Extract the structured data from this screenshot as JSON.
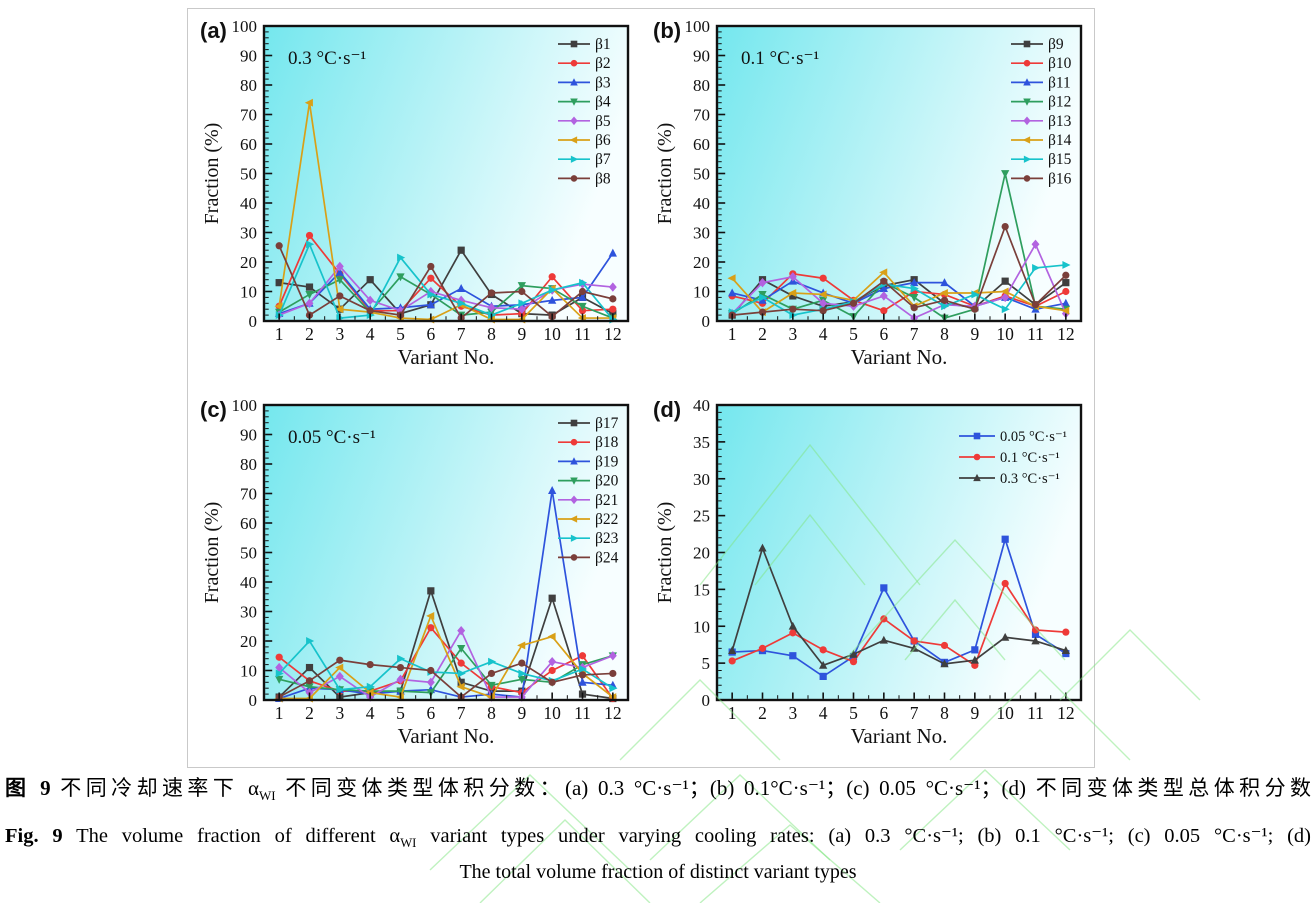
{
  "watermark_color": "#7fe57f",
  "plot_background_gradient": [
    "#74e7ee",
    "#aff1f5",
    "#f7feff"
  ],
  "axis_color": "#111111",
  "chart_data": [
    {
      "id": "a",
      "type": "line",
      "label": "(a)",
      "annotation": "0.3 °C·s⁻¹",
      "xlabel": "Variant No.",
      "ylabel": "Fraction (%)",
      "ylim": [
        0,
        100
      ],
      "ytick_step": 10,
      "legend_position": "top-right",
      "grid": false,
      "categories": [
        1,
        2,
        3,
        4,
        5,
        6,
        7,
        8,
        9,
        10,
        11,
        12
      ],
      "series": [
        {
          "name": "β1",
          "color": "#3f3f3f",
          "marker": "square",
          "values": [
            13,
            11.5,
            4,
            14,
            2.5,
            5.5,
            24,
            9,
            2.5,
            2,
            8,
            2.5
          ]
        },
        {
          "name": "β2",
          "color": "#ee3a38",
          "marker": "circle",
          "values": [
            5,
            29,
            16,
            3.5,
            3.5,
            14.5,
            5,
            2,
            2.5,
            15,
            3.5,
            4
          ]
        },
        {
          "name": "β3",
          "color": "#2e53dc",
          "marker": "triangle-up",
          "values": [
            2.5,
            6,
            16.5,
            4,
            4.5,
            5.5,
            11,
            5,
            5.5,
            7,
            8,
            23
          ]
        },
        {
          "name": "β4",
          "color": "#2e9e5e",
          "marker": "triangle-down",
          "values": [
            3,
            9,
            14,
            3,
            15,
            9,
            2,
            3,
            12,
            11,
            5,
            1
          ]
        },
        {
          "name": "β5",
          "color": "#b263e0",
          "marker": "diamond",
          "values": [
            2,
            6,
            18.5,
            7,
            3.5,
            10,
            7,
            4.5,
            4,
            10.5,
            12.5,
            11.5
          ]
        },
        {
          "name": "β6",
          "color": "#d9a017",
          "marker": "triangle-left",
          "values": [
            5,
            74,
            4,
            3,
            1,
            0.5,
            5.5,
            0.5,
            0.5,
            11,
            1,
            1
          ]
        },
        {
          "name": "β7",
          "color": "#17c3cb",
          "marker": "triangle-right",
          "values": [
            2,
            26,
            1,
            2,
            21.5,
            9,
            6,
            2,
            6,
            10.5,
            13,
            0.5
          ]
        },
        {
          "name": "β8",
          "color": "#7a3f3a",
          "marker": "circle",
          "values": [
            25.5,
            2,
            8.5,
            3.5,
            2,
            18.5,
            1,
            9.5,
            10,
            1.5,
            10,
            7.5
          ]
        }
      ]
    },
    {
      "id": "b",
      "type": "line",
      "label": "(b)",
      "annotation": "0.1 °C·s⁻¹",
      "xlabel": "Variant No.",
      "ylabel": "Fraction (%)",
      "ylim": [
        0,
        100
      ],
      "ytick_step": 10,
      "legend_position": "top-right",
      "grid": false,
      "categories": [
        1,
        2,
        3,
        4,
        5,
        6,
        7,
        8,
        9,
        10,
        11,
        12
      ],
      "series": [
        {
          "name": "β9",
          "color": "#3f3f3f",
          "marker": "square",
          "values": [
            2,
            14,
            8.5,
            5,
            6.5,
            12,
            14,
            6,
            4.5,
            13.5,
            5.5,
            13
          ]
        },
        {
          "name": "β10",
          "color": "#ee3a38",
          "marker": "circle",
          "values": [
            8.5,
            6,
            16,
            14.5,
            7,
            3.5,
            10,
            9,
            5,
            8.5,
            5,
            10
          ]
        },
        {
          "name": "β11",
          "color": "#2e53dc",
          "marker": "triangle-up",
          "values": [
            9.5,
            7,
            13.5,
            9.5,
            6,
            11,
            13,
            13,
            5,
            8,
            4,
            6
          ]
        },
        {
          "name": "β12",
          "color": "#2e9e5e",
          "marker": "triangle-down",
          "values": [
            2.5,
            9,
            4,
            7,
            1.5,
            13,
            8,
            1,
            4,
            50,
            5,
            4
          ]
        },
        {
          "name": "β13",
          "color": "#b263e0",
          "marker": "diamond",
          "values": [
            2.5,
            13,
            15,
            6,
            5,
            8.5,
            1,
            5.5,
            5,
            8,
            26,
            2.5
          ]
        },
        {
          "name": "β14",
          "color": "#d9a017",
          "marker": "triangle-left",
          "values": [
            14.5,
            3,
            9.5,
            9,
            7,
            16.5,
            5,
            9.5,
            9.5,
            10,
            5,
            3.5
          ]
        },
        {
          "name": "β15",
          "color": "#17c3cb",
          "marker": "triangle-right",
          "values": [
            3,
            8,
            2,
            4,
            6.5,
            12.5,
            11,
            5,
            9,
            4,
            18,
            19
          ]
        },
        {
          "name": "β16",
          "color": "#7a3f3a",
          "marker": "circle",
          "values": [
            2,
            3,
            4,
            3.5,
            6,
            13.5,
            4.5,
            7,
            4,
            32,
            5.5,
            15.5
          ]
        }
      ]
    },
    {
      "id": "c",
      "type": "line",
      "label": "(c)",
      "annotation": "0.05 °C·s⁻¹",
      "xlabel": "Variant No.",
      "ylabel": "Fraction (%)",
      "ylim": [
        0,
        100
      ],
      "ytick_step": 10,
      "legend_position": "top-right",
      "grid": false,
      "categories": [
        1,
        2,
        3,
        4,
        5,
        6,
        7,
        8,
        9,
        10,
        11,
        12
      ],
      "series": [
        {
          "name": "β17",
          "color": "#3f3f3f",
          "marker": "square",
          "values": [
            1,
            11,
            1,
            2.5,
            3,
            37,
            6,
            3,
            3,
            34.5,
            2,
            0.5
          ]
        },
        {
          "name": "β18",
          "color": "#ee3a38",
          "marker": "circle",
          "values": [
            14.5,
            6.5,
            3,
            3,
            6.5,
            24.5,
            12.5,
            4.5,
            2.5,
            10,
            15,
            0.5
          ]
        },
        {
          "name": "β19",
          "color": "#2e53dc",
          "marker": "triangle-up",
          "values": [
            0.5,
            4,
            3.5,
            2,
            3,
            3.5,
            1,
            2,
            1,
            71,
            6,
            5
          ]
        },
        {
          "name": "β20",
          "color": "#2e9e5e",
          "marker": "triangle-down",
          "values": [
            7,
            4.5,
            3.5,
            3,
            3,
            2.5,
            17.5,
            5,
            7,
            6,
            12,
            15
          ]
        },
        {
          "name": "β21",
          "color": "#b263e0",
          "marker": "diamond",
          "values": [
            11,
            2.5,
            8,
            1,
            7,
            6,
            23.5,
            1,
            1,
            13,
            11,
            15
          ]
        },
        {
          "name": "β22",
          "color": "#d9a017",
          "marker": "triangle-left",
          "values": [
            0.5,
            0.5,
            11,
            2.5,
            1,
            28.5,
            4.5,
            1,
            18.5,
            21.5,
            9,
            1
          ]
        },
        {
          "name": "β23",
          "color": "#17c3cb",
          "marker": "triangle-right",
          "values": [
            9,
            20,
            3.5,
            4.5,
            14,
            9.5,
            9,
            13,
            9,
            6.5,
            10.5,
            4
          ]
        },
        {
          "name": "β24",
          "color": "#7a3f3a",
          "marker": "circle",
          "values": [
            1,
            6.5,
            13.5,
            12,
            11,
            10,
            1,
            9,
            12.5,
            6,
            8.5,
            9
          ]
        }
      ]
    },
    {
      "id": "d",
      "type": "line",
      "label": "(d)",
      "annotation": "",
      "xlabel": "Variant No.",
      "ylabel": "Fraction (%)",
      "ylim": [
        0,
        40
      ],
      "ytick_step": 5,
      "legend_position": "top-right",
      "grid": false,
      "categories": [
        1,
        2,
        3,
        4,
        5,
        6,
        7,
        8,
        9,
        10,
        11,
        12
      ],
      "series": [
        {
          "name": "0.05 °C·s⁻¹",
          "color": "#2e53dc",
          "marker": "square",
          "values": [
            6.5,
            6.7,
            6.0,
            3.2,
            5.9,
            15.2,
            8.0,
            5.1,
            6.8,
            21.8,
            8.9,
            6.3
          ]
        },
        {
          "name": "0.1 °C·s⁻¹",
          "color": "#ee3a38",
          "marker": "circle",
          "values": [
            5.3,
            7.0,
            9.1,
            6.8,
            5.2,
            11.0,
            8.0,
            7.4,
            4.7,
            15.8,
            9.5,
            9.2
          ]
        },
        {
          "name": "0.3 °C·s⁻¹",
          "color": "#3f3f3f",
          "marker": "triangle-up",
          "values": [
            6.7,
            20.6,
            10.0,
            4.7,
            6.2,
            8.1,
            7.0,
            4.9,
            5.4,
            8.5,
            8.0,
            6.7
          ]
        }
      ]
    }
  ],
  "caption": {
    "zh": {
      "bold": "图 9",
      "pre": "  不同冷却速率下 α",
      "sub": "WI",
      "post": " 不同变体类型体积分数：(a) 0.3 °C·s⁻¹；(b) 0.1°C·s⁻¹；(c) 0.05 °C·s⁻¹；(d) 不同变体类型总体积分数"
    },
    "en": {
      "bold": "Fig. 9",
      "pre": "  The volume fraction of different α",
      "sub": "WI",
      "post": " variant types under varying cooling rates: (a) 0.3 °C·s⁻¹; (b) 0.1 °C·s⁻¹; (c) 0.05 °C·s⁻¹; (d)"
    },
    "en2": "The total volume fraction of distinct variant types"
  }
}
